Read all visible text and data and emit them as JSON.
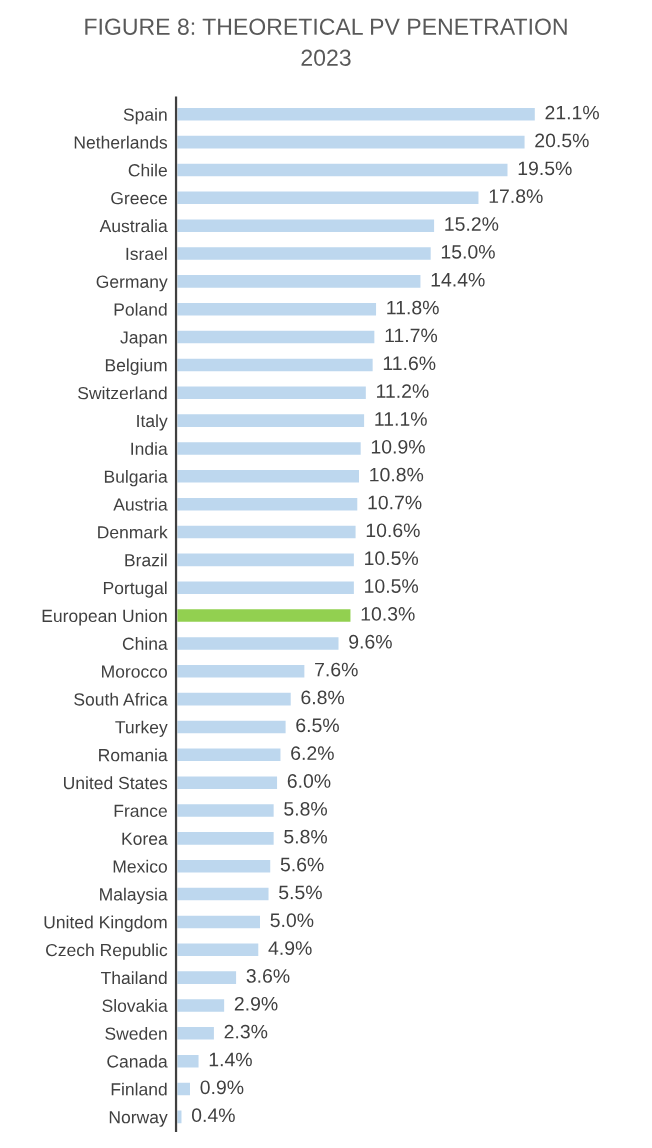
{
  "chart_data": {
    "type": "bar",
    "orientation": "horizontal",
    "title": "FIGURE 8: THEORETICAL PV PENETRATION",
    "subtitle": "2023",
    "categories": [
      "Spain",
      "Netherlands",
      "Chile",
      "Greece",
      "Australia",
      "Israel",
      "Germany",
      "Poland",
      "Japan",
      "Belgium",
      "Switzerland",
      "Italy",
      "India",
      "Bulgaria",
      "Austria",
      "Denmark",
      "Brazil",
      "Portugal",
      "European Union",
      "China",
      "Morocco",
      "South Africa",
      "Turkey",
      "Romania",
      "United States",
      "France",
      "Korea",
      "Mexico",
      "Malaysia",
      "United Kingdom",
      "Czech Republic",
      "Thailand",
      "Slovakia",
      "Sweden",
      "Canada",
      "Finland",
      "Norway"
    ],
    "values": [
      21.1,
      20.5,
      19.5,
      17.8,
      15.2,
      15.0,
      14.4,
      11.8,
      11.7,
      11.6,
      11.2,
      11.1,
      10.9,
      10.8,
      10.7,
      10.6,
      10.5,
      10.5,
      10.3,
      9.6,
      7.6,
      6.8,
      6.5,
      6.2,
      6.0,
      5.8,
      5.8,
      5.6,
      5.5,
      5.0,
      4.9,
      3.6,
      2.9,
      2.3,
      1.4,
      0.9,
      0.4
    ],
    "value_labels": [
      "21.1%",
      "20.5%",
      "19.5%",
      "17.8%",
      "15.2%",
      "15.0%",
      "14.4%",
      "11.8%",
      "11.7%",
      "11.6%",
      "11.2%",
      "11.1%",
      "10.9%",
      "10.8%",
      "10.7%",
      "10.6%",
      "10.5%",
      "10.5%",
      "10.3%",
      "9.6%",
      "7.6%",
      "6.8%",
      "6.5%",
      "6.2%",
      "6.0%",
      "5.8%",
      "5.8%",
      "5.6%",
      "5.5%",
      "5.0%",
      "4.9%",
      "3.6%",
      "2.9%",
      "2.3%",
      "1.4%",
      "0.9%",
      "0.4%"
    ],
    "colors": [
      "#bdd7ee",
      "#bdd7ee",
      "#bdd7ee",
      "#bdd7ee",
      "#bdd7ee",
      "#bdd7ee",
      "#bdd7ee",
      "#bdd7ee",
      "#bdd7ee",
      "#bdd7ee",
      "#bdd7ee",
      "#bdd7ee",
      "#bdd7ee",
      "#bdd7ee",
      "#bdd7ee",
      "#bdd7ee",
      "#bdd7ee",
      "#bdd7ee",
      "#92d050",
      "#bdd7ee",
      "#bdd7ee",
      "#bdd7ee",
      "#bdd7ee",
      "#bdd7ee",
      "#bdd7ee",
      "#bdd7ee",
      "#bdd7ee",
      "#bdd7ee",
      "#bdd7ee",
      "#bdd7ee",
      "#bdd7ee",
      "#bdd7ee",
      "#bdd7ee",
      "#bdd7ee",
      "#bdd7ee",
      "#bdd7ee",
      "#bdd7ee"
    ],
    "grid": false,
    "legend": false
  }
}
